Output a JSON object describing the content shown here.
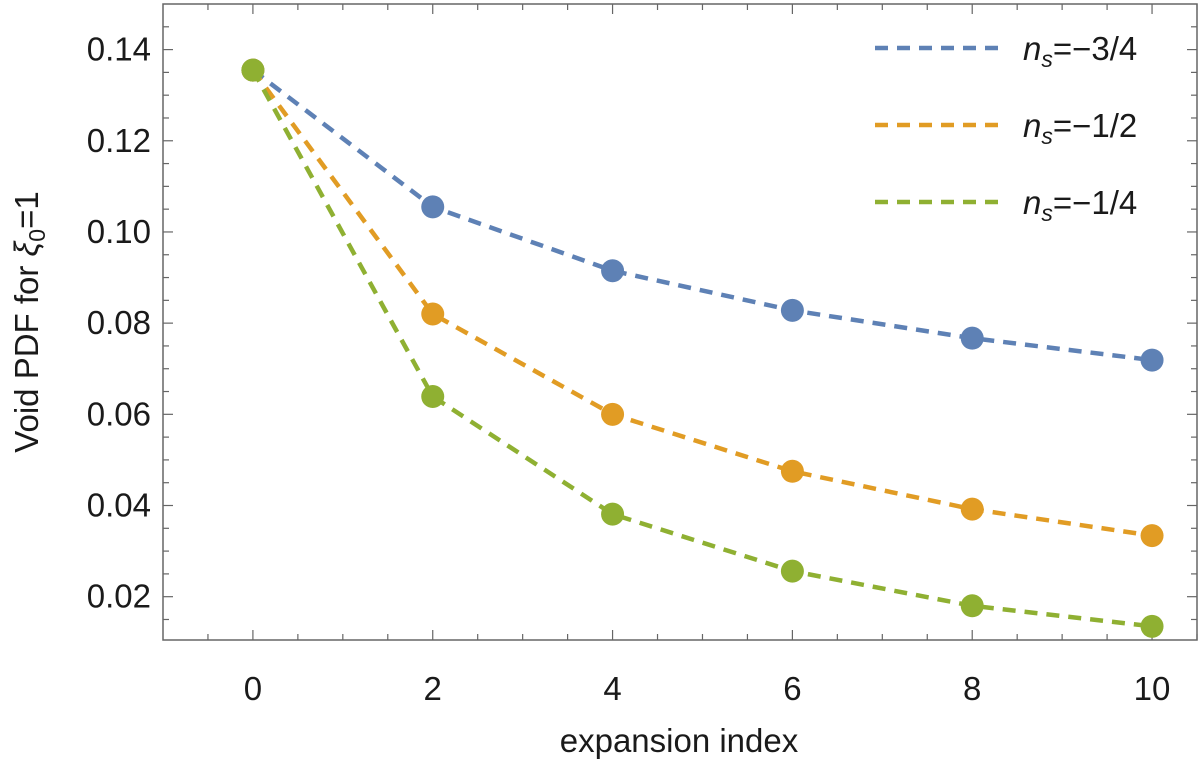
{
  "chart_data": {
    "type": "line",
    "xlabel": "expansion index",
    "ylabel_parts": {
      "prefix": "Void PDF for ",
      "symbol": "ξ",
      "subscript": "0",
      "suffix": "=1"
    },
    "xlim": [
      -1,
      10.5
    ],
    "ylim": [
      0.0105,
      0.15
    ],
    "xticks": [
      0,
      2,
      4,
      6,
      8,
      10
    ],
    "xtick_labels": [
      "0",
      "2",
      "4",
      "6",
      "8",
      "10"
    ],
    "yticks": [
      0.02,
      0.04,
      0.06,
      0.08,
      0.1,
      0.12,
      0.14
    ],
    "ytick_labels": [
      "0.02",
      "0.04",
      "0.06",
      "0.08",
      "0.10",
      "0.12",
      "0.14"
    ],
    "grid": false,
    "legend_position": "top-right",
    "x": [
      0,
      2,
      4,
      6,
      8,
      10
    ],
    "series": [
      {
        "name_symbol": "n",
        "name_subscript": "s",
        "name_value": "=−3/4",
        "color": "#5e81b5",
        "values": [
          0.1355,
          0.1055,
          0.0915,
          0.0828,
          0.0767,
          0.0719
        ]
      },
      {
        "name_symbol": "n",
        "name_subscript": "s",
        "name_value": "=−1/2",
        "color": "#e19c24",
        "values": [
          0.1355,
          0.082,
          0.06,
          0.0475,
          0.0392,
          0.0334
        ]
      },
      {
        "name_symbol": "n",
        "name_subscript": "s",
        "name_value": "=−1/4",
        "color": "#8fb032",
        "values": [
          0.1355,
          0.0639,
          0.0381,
          0.0256,
          0.018,
          0.0135
        ]
      }
    ]
  }
}
